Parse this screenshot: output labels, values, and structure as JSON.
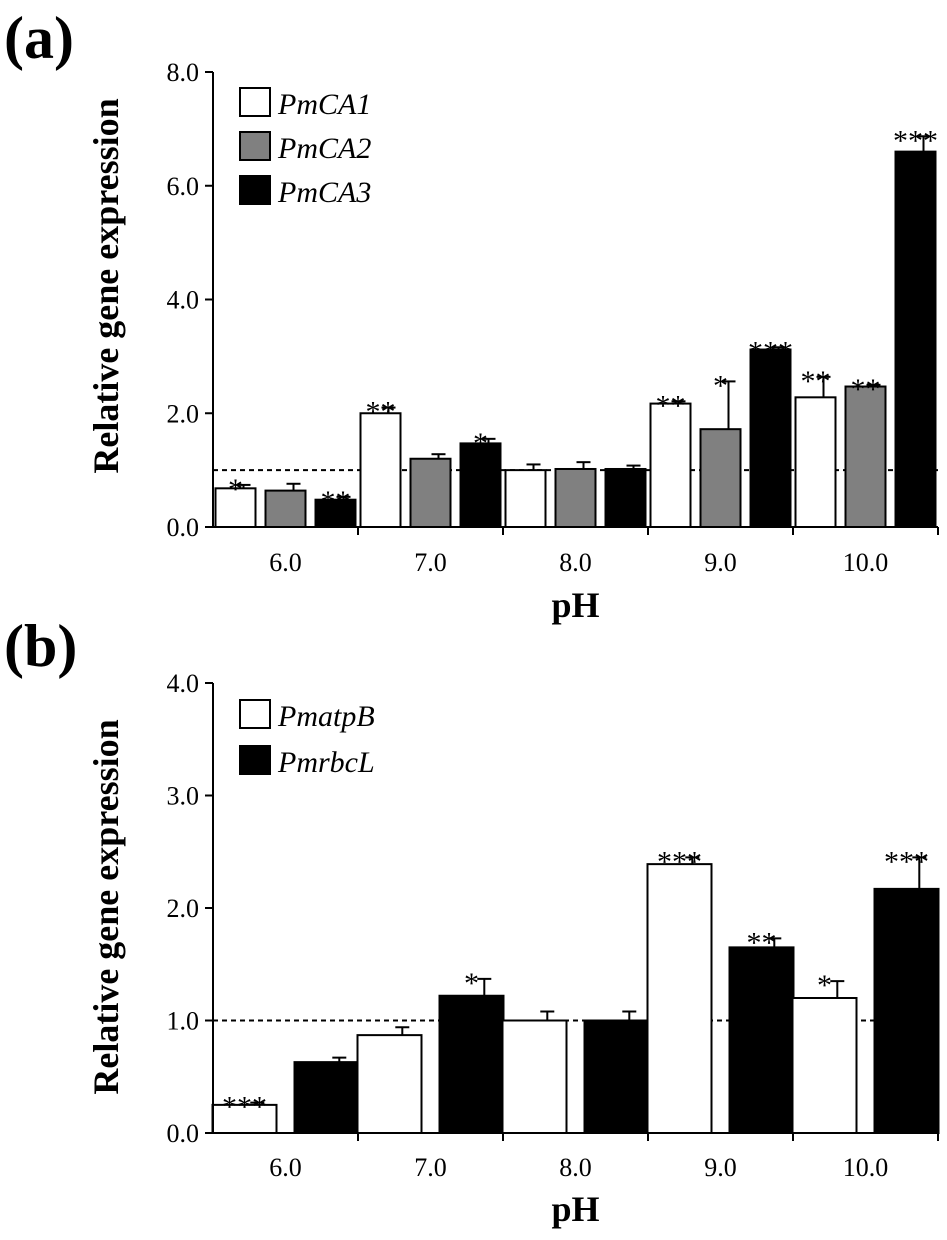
{
  "chart_data": [
    {
      "type": "bar",
      "panel_label": "(a)",
      "xlabel": "pH",
      "ylabel": "Relative gene expression",
      "categories": [
        "6.0",
        "7.0",
        "8.0",
        "9.0",
        "10.0"
      ],
      "ylim": [
        0,
        8
      ],
      "yticks": [
        "0.0",
        "2.0",
        "4.0",
        "6.0",
        "8.0"
      ],
      "reference_line": 1.0,
      "legend_position": "top-left",
      "series": [
        {
          "name": "PmCA1",
          "color": "#ffffff",
          "values": [
            0.68,
            2.0,
            1.0,
            2.17,
            2.28
          ],
          "errors": [
            0.06,
            0.1,
            0.1,
            0.04,
            0.36
          ],
          "significance": [
            "*",
            "**",
            "",
            "**",
            "**"
          ]
        },
        {
          "name": "PmCA2",
          "color": "#808080",
          "values": [
            0.64,
            1.2,
            1.02,
            1.72,
            2.47
          ],
          "errors": [
            0.12,
            0.08,
            0.12,
            0.84,
            0.03
          ],
          "significance": [
            "",
            "",
            "",
            "*",
            "**"
          ]
        },
        {
          "name": "PmCA3",
          "color": "#000000",
          "values": [
            0.48,
            1.47,
            1.02,
            3.12,
            6.6
          ],
          "errors": [
            0.05,
            0.08,
            0.06,
            0.04,
            0.27
          ],
          "significance": [
            "**",
            "*",
            "",
            "***",
            "***"
          ]
        }
      ]
    },
    {
      "type": "bar",
      "panel_label": "(b)",
      "xlabel": "pH",
      "ylabel": "Relative gene expression",
      "categories": [
        "6.0",
        "7.0",
        "8.0",
        "9.0",
        "10.0"
      ],
      "ylim": [
        0,
        4
      ],
      "yticks": [
        "0.0",
        "1.0",
        "2.0",
        "3.0",
        "4.0"
      ],
      "reference_line": 1.0,
      "legend_position": "top-left",
      "series": [
        {
          "name": "PmatpB",
          "color": "#ffffff",
          "values": [
            0.25,
            0.87,
            1.0,
            2.39,
            1.2
          ],
          "errors": [
            0.02,
            0.07,
            0.08,
            0.06,
            0.15
          ],
          "significance": [
            "***",
            "",
            "",
            "***",
            "*"
          ]
        },
        {
          "name": "PmrbcL",
          "color": "#000000",
          "values": [
            0.63,
            1.22,
            1.0,
            1.65,
            2.17
          ],
          "errors": [
            0.04,
            0.15,
            0.08,
            0.08,
            0.28
          ],
          "significance": [
            "",
            "*",
            "",
            "**",
            "***"
          ]
        }
      ]
    }
  ]
}
